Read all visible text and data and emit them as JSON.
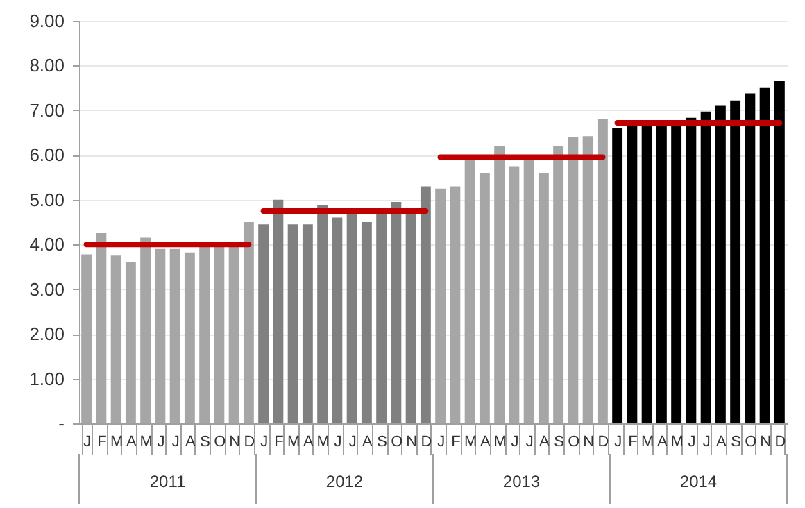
{
  "chart_data": {
    "type": "bar",
    "categories": [
      "J",
      "F",
      "M",
      "A",
      "M",
      "J",
      "J",
      "A",
      "S",
      "O",
      "N",
      "D",
      "J",
      "F",
      "M",
      "A",
      "M",
      "J",
      "J",
      "A",
      "S",
      "O",
      "N",
      "D",
      "J",
      "F",
      "M",
      "A",
      "M",
      "J",
      "J",
      "A",
      "S",
      "O",
      "N",
      "D",
      "J",
      "F",
      "M",
      "A",
      "M",
      "J",
      "J",
      "A",
      "S",
      "O",
      "N",
      "D"
    ],
    "series": [
      {
        "colors": [
          "#a6a6a6",
          "#a6a6a6",
          "#a6a6a6",
          "#a6a6a6",
          "#a6a6a6",
          "#a6a6a6",
          "#a6a6a6",
          "#a6a6a6",
          "#a6a6a6",
          "#a6a6a6",
          "#a6a6a6",
          "#a6a6a6",
          "#808080",
          "#808080",
          "#808080",
          "#808080",
          "#808080",
          "#808080",
          "#808080",
          "#808080",
          "#808080",
          "#808080",
          "#808080",
          "#808080",
          "#a6a6a6",
          "#a6a6a6",
          "#a6a6a6",
          "#a6a6a6",
          "#a6a6a6",
          "#a6a6a6",
          "#a6a6a6",
          "#a6a6a6",
          "#a6a6a6",
          "#a6a6a6",
          "#a6a6a6",
          "#a6a6a6",
          "#000000",
          "#000000",
          "#000000",
          "#000000",
          "#000000",
          "#000000",
          "#000000",
          "#000000",
          "#000000",
          "#000000",
          "#000000",
          "#000000"
        ],
        "values": [
          3.78,
          4.25,
          3.75,
          3.6,
          4.15,
          3.9,
          3.9,
          3.82,
          3.95,
          3.95,
          4.05,
          4.5,
          4.45,
          5.0,
          4.45,
          4.45,
          4.88,
          4.6,
          4.7,
          4.5,
          4.7,
          4.95,
          4.7,
          5.3,
          5.25,
          5.3,
          5.95,
          5.6,
          6.2,
          5.75,
          5.95,
          5.6,
          6.2,
          6.4,
          6.42,
          6.8,
          6.6,
          6.65,
          6.7,
          6.7,
          6.7,
          6.83,
          6.97,
          7.1,
          7.22,
          7.38,
          7.5,
          7.65
        ]
      },
      {
        "type": "line",
        "color": "#c00000",
        "values": [
          4.0,
          4.0,
          4.0,
          4.0,
          4.0,
          4.0,
          4.0,
          4.0,
          4.0,
          4.0,
          4.0,
          4.0,
          null,
          null,
          null,
          null,
          null,
          null,
          null,
          null,
          null,
          null,
          null,
          null,
          null,
          null,
          null,
          null,
          null,
          null,
          null,
          null,
          null,
          null,
          null,
          null,
          null,
          null,
          null,
          null,
          null,
          null,
          null,
          null,
          null,
          null,
          null,
          null
        ]
      },
      {
        "type": "line",
        "color": "#c00000",
        "values": [
          null,
          null,
          null,
          null,
          null,
          null,
          null,
          null,
          null,
          null,
          null,
          null,
          4.75,
          4.75,
          4.75,
          4.75,
          4.75,
          4.75,
          4.75,
          4.75,
          4.75,
          4.75,
          4.75,
          4.75,
          null,
          null,
          null,
          null,
          null,
          null,
          null,
          null,
          null,
          null,
          null,
          null,
          null,
          null,
          null,
          null,
          null,
          null,
          null,
          null,
          null,
          null,
          null,
          null
        ]
      },
      {
        "type": "line",
        "color": "#c00000",
        "values": [
          null,
          null,
          null,
          null,
          null,
          null,
          null,
          null,
          null,
          null,
          null,
          null,
          null,
          null,
          null,
          null,
          null,
          null,
          null,
          null,
          null,
          null,
          null,
          null,
          5.95,
          5.95,
          5.95,
          5.95,
          5.95,
          5.95,
          5.95,
          5.95,
          5.95,
          5.95,
          5.95,
          5.95,
          null,
          null,
          null,
          null,
          null,
          null,
          null,
          null,
          null,
          null,
          null,
          null
        ]
      },
      {
        "type": "line",
        "color": "#c00000",
        "values": [
          null,
          null,
          null,
          null,
          null,
          null,
          null,
          null,
          null,
          null,
          null,
          null,
          null,
          null,
          null,
          null,
          null,
          null,
          null,
          null,
          null,
          null,
          null,
          null,
          null,
          null,
          null,
          null,
          null,
          null,
          null,
          null,
          null,
          null,
          null,
          null,
          6.72,
          6.72,
          6.72,
          6.72,
          6.72,
          6.72,
          6.72,
          6.72,
          6.72,
          6.72,
          6.72,
          6.72
        ]
      }
    ],
    "annotations": [
      "2011",
      "2012",
      "2013",
      "2014"
    ],
    "ylim": [
      0,
      9
    ],
    "yticks": [
      {
        "value": 0,
        "label": "-"
      },
      {
        "value": 1,
        "label": "1.00"
      },
      {
        "value": 2,
        "label": "2.00"
      },
      {
        "value": 3,
        "label": "3.00"
      },
      {
        "value": 4,
        "label": "4.00"
      },
      {
        "value": 5,
        "label": "5.00"
      },
      {
        "value": 6,
        "label": "6.00"
      },
      {
        "value": 7,
        "label": "7.00"
      },
      {
        "value": 8,
        "label": "8.00"
      },
      {
        "value": 9,
        "label": "9.00"
      }
    ],
    "grid": "y"
  }
}
